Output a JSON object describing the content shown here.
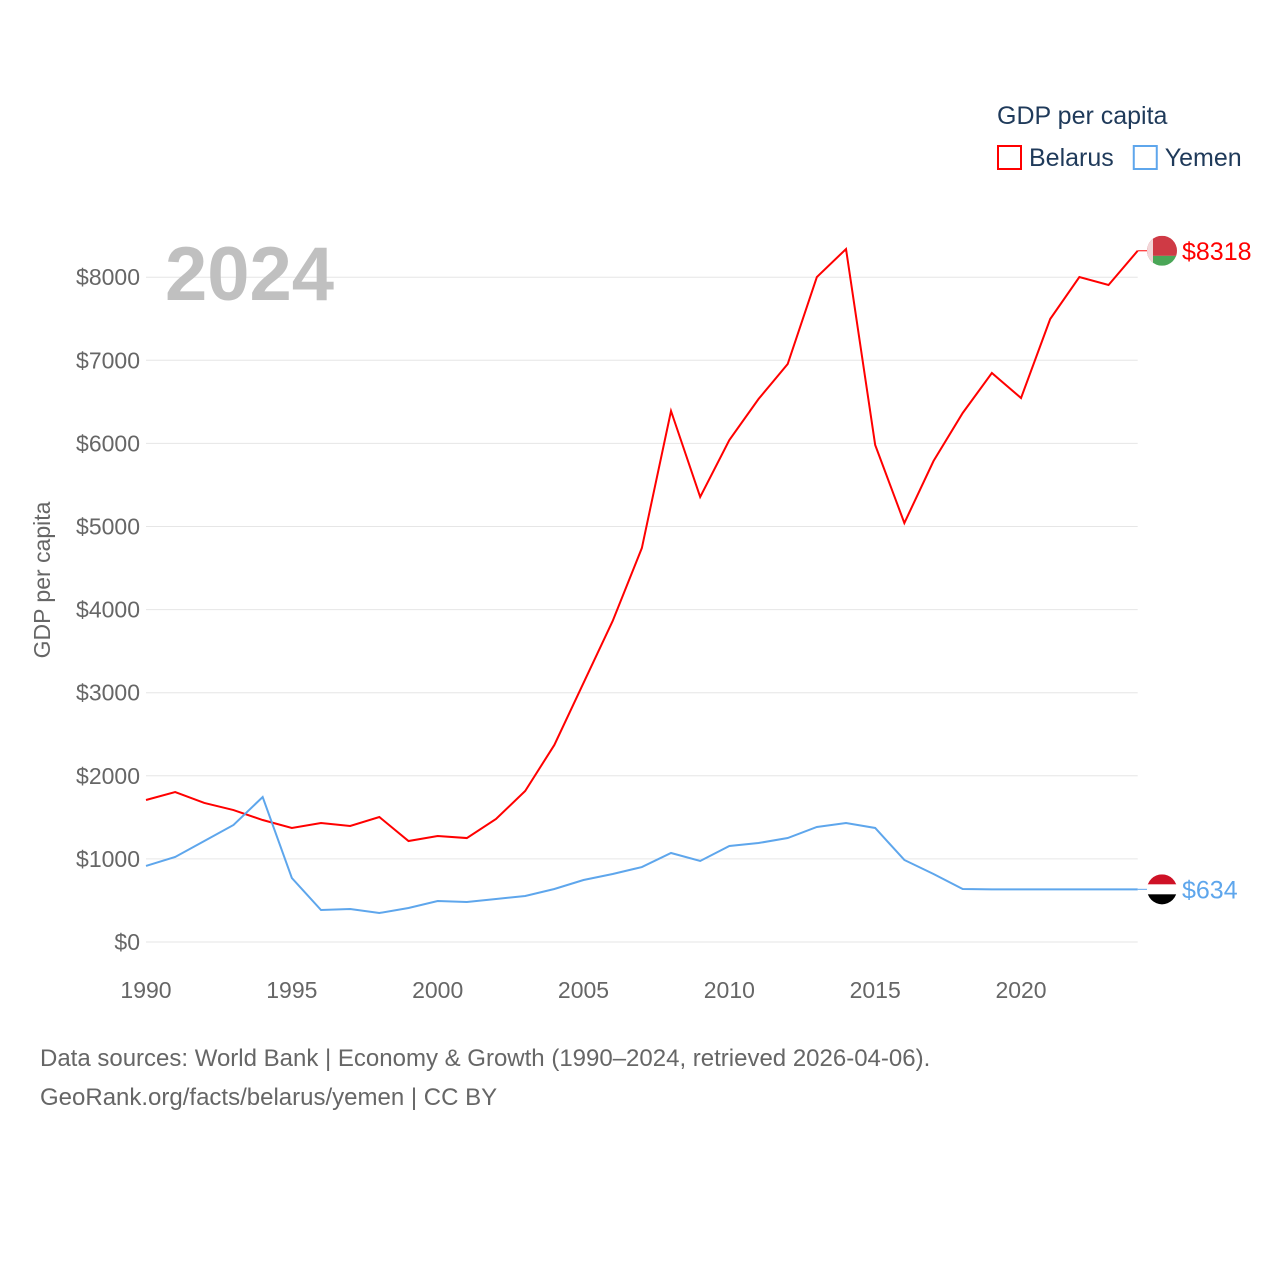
{
  "chart_data": {
    "type": "line",
    "title": "GDP per capita",
    "ylabel": "GDP per capita",
    "xlabel": "",
    "year_label": "2024",
    "xlim": [
      1990,
      2024
    ],
    "ylim": [
      0,
      8400
    ],
    "x_ticks": [
      1990,
      1995,
      2000,
      2005,
      2010,
      2015,
      2020
    ],
    "y_ticks": [
      0,
      1000,
      2000,
      3000,
      4000,
      5000,
      6000,
      7000,
      8000
    ],
    "y_tick_labels": [
      "$0",
      "$1000",
      "$2000",
      "$3000",
      "$4000",
      "$5000",
      "$6000",
      "$7000",
      "$8000"
    ],
    "grid": true,
    "legend_position": "top-right",
    "x": [
      1990,
      1991,
      1992,
      1993,
      1994,
      1995,
      1996,
      1997,
      1998,
      1999,
      2000,
      2001,
      2002,
      2003,
      2004,
      2005,
      2006,
      2007,
      2008,
      2009,
      2010,
      2011,
      2012,
      2013,
      2014,
      2015,
      2016,
      2017,
      2018,
      2019,
      2020,
      2021,
      2022,
      2023,
      2024
    ],
    "series": [
      {
        "name": "Belarus",
        "color": "#ff0000",
        "end_label": "$8318",
        "values": [
          1709,
          1805,
          1673,
          1588,
          1468,
          1372,
          1432,
          1396,
          1504,
          1215,
          1276,
          1251,
          1480,
          1817,
          2371,
          3117,
          3863,
          4741,
          6390,
          5355,
          6041,
          6534,
          6955,
          8002,
          8339,
          5981,
          5042,
          5788,
          6366,
          6847,
          6546,
          7497,
          8002,
          7906,
          8318
        ]
      },
      {
        "name": "Yemen",
        "color": "#5ea6ec",
        "end_label": "$634",
        "values": [
          915,
          1023,
          1215,
          1408,
          1745,
          770,
          385,
          397,
          349,
          409,
          493,
          481,
          517,
          554,
          638,
          746,
          818,
          902,
          1071,
          975,
          1155,
          1191,
          1251,
          1384,
          1432,
          1372,
          987,
          818,
          638,
          634,
          634,
          634,
          634,
          634,
          634
        ]
      }
    ]
  },
  "footer": {
    "line1": "Data sources: World Bank | Economy & Growth (1990–2024, retrieved 2026-04-06).",
    "line2": "GeoRank.org/facts/belarus/yemen | CC BY"
  }
}
